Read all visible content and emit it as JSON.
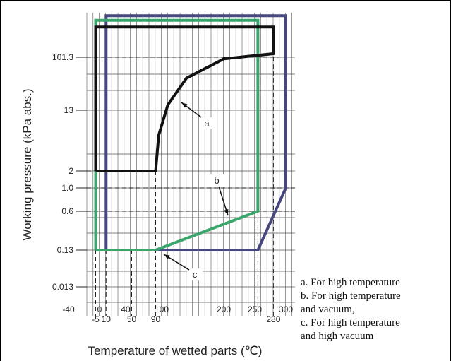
{
  "chart_data": {
    "type": "line",
    "title": "",
    "xlabel": "Temperature of wetted parts (℃)",
    "ylabel": "Working pressure (kPa abs.)",
    "x_ticks_major": [
      "-40",
      "0",
      "40",
      "100",
      "200",
      "250",
      "300"
    ],
    "x_ticks_minor": [
      "-5",
      "10",
      "50",
      "90",
      "280"
    ],
    "y_ticks": [
      "101.3",
      "13",
      "2",
      "1.0",
      "0.6",
      "0.13",
      "0.013"
    ],
    "xlim": [
      -40,
      300
    ],
    "ylim": [
      0.004,
      500
    ],
    "grid": true,
    "series": [
      {
        "name": "a",
        "color": "#111111",
        "boundary": [
          [
            -5,
            2
          ],
          [
            90,
            2
          ],
          [
            95,
            6
          ],
          [
            110,
            16
          ],
          [
            140,
            45
          ],
          [
            200,
            95
          ],
          [
            280,
            115
          ],
          [
            280,
            300
          ],
          [
            -5,
            300
          ],
          [
            -5,
            2
          ]
        ]
      },
      {
        "name": "b",
        "color": "#3aa66b",
        "boundary": [
          [
            -5,
            0.13
          ],
          [
            90,
            0.13
          ],
          [
            255,
            0.6
          ],
          [
            255,
            380
          ],
          [
            -5,
            380
          ],
          [
            -5,
            0.13
          ]
        ]
      },
      {
        "name": "c",
        "color": "#46477e",
        "boundary": [
          [
            10,
            0.13
          ],
          [
            255,
            0.13
          ],
          [
            300,
            1.0
          ],
          [
            300,
            450
          ],
          [
            10,
            450
          ],
          [
            10,
            0.13
          ]
        ]
      }
    ],
    "callouts": [
      "a",
      "b",
      "c"
    ],
    "legend": [
      "a. For high temperature",
      "b. For high temperature",
      "and vacuum,",
      "c. For high temperature",
      "and high vacuum"
    ]
  }
}
